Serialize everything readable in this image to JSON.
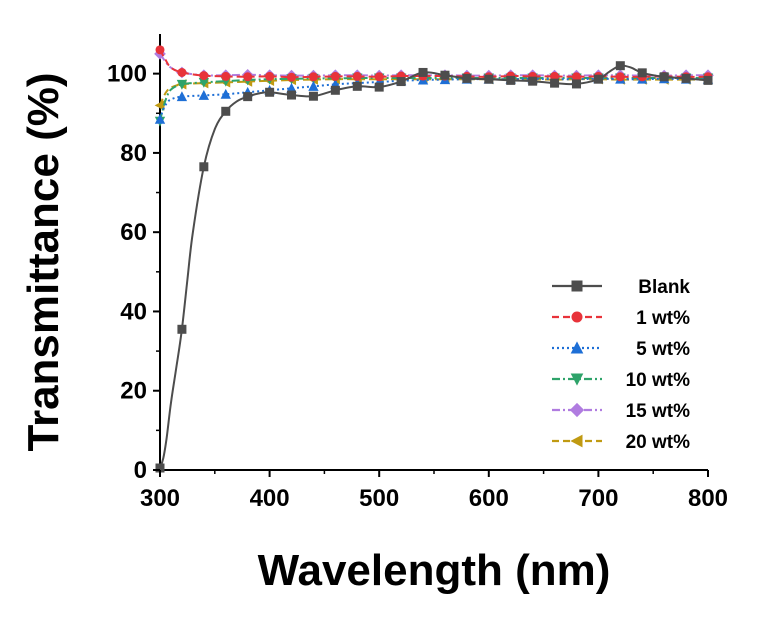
{
  "chart_data": {
    "type": "line",
    "xlabel": "Wavelength (nm)",
    "ylabel": "Transmittance (%)",
    "xlim": [
      300,
      800
    ],
    "ylim": [
      0,
      110
    ],
    "x_ticks": [
      300,
      400,
      500,
      600,
      700,
      800
    ],
    "y_ticks": [
      0,
      20,
      40,
      60,
      80,
      100
    ],
    "legend_position": "right",
    "grid": false,
    "series": [
      {
        "name": "Blank",
        "color": "#4d4d4d",
        "marker": "square",
        "dash": "solid",
        "x": [
          300,
          303,
          306,
          310,
          315,
          320,
          325,
          330,
          340,
          350,
          360,
          370,
          380,
          390,
          400,
          420,
          440,
          460,
          480,
          500,
          520,
          540,
          560,
          580,
          600,
          620,
          640,
          660,
          680,
          700,
          710,
          720,
          730,
          740,
          760,
          780,
          800
        ],
        "y": [
          0.5,
          3,
          8,
          17,
          26,
          35.5,
          48,
          60,
          76.5,
          86,
          90.5,
          93,
          94.2,
          95,
          95.3,
          94.6,
          94.3,
          95.8,
          96.8,
          96.6,
          98,
          100.3,
          99.6,
          98.8,
          98.6,
          98.3,
          98.1,
          97.6,
          97.4,
          98.6,
          100.5,
          102,
          101.5,
          100.2,
          99.2,
          98.8,
          98.3
        ],
        "markers_x": [
          300,
          320,
          340,
          360,
          380,
          400,
          420,
          440,
          460,
          480,
          500,
          520,
          540,
          560,
          580,
          600,
          620,
          640,
          660,
          680,
          700,
          720,
          740,
          760,
          780,
          800
        ]
      },
      {
        "name": "1 wt%",
        "color": "#e8333a",
        "marker": "circle",
        "dash": "dash",
        "x": [
          300,
          305,
          310,
          320,
          340,
          360,
          380,
          400,
          420,
          440,
          460,
          480,
          500,
          520,
          540,
          560,
          580,
          600,
          620,
          640,
          660,
          680,
          700,
          720,
          740,
          760,
          780,
          800
        ],
        "y": [
          106,
          103.5,
          101.5,
          100.3,
          99.5,
          99.3,
          99.2,
          99.3,
          99.1,
          99.2,
          99.3,
          99.3,
          99.2,
          99.4,
          99.4,
          99.4,
          99.3,
          99.2,
          99.4,
          99.3,
          99.3,
          99.2,
          99.3,
          99.2,
          99.2,
          99.3,
          99.2,
          99.2
        ]
      },
      {
        "name": "5 wt%",
        "color": "#1e6fd6",
        "marker": "triangle-up",
        "dash": "dot",
        "x": [
          300,
          303,
          306,
          310,
          320,
          340,
          360,
          380,
          400,
          420,
          440,
          460,
          480,
          500,
          520,
          540,
          560,
          580,
          600,
          620,
          640,
          660,
          680,
          700,
          720,
          740,
          760,
          780,
          800
        ],
        "y": [
          88.5,
          91,
          92.5,
          93.5,
          94.2,
          94.5,
          94.8,
          95.3,
          95.8,
          96.3,
          96.8,
          97.3,
          97.6,
          97.9,
          98.2,
          98.4,
          98.5,
          98.6,
          98.6,
          98.6,
          98.7,
          98.6,
          98.6,
          98.7,
          98.6,
          98.6,
          98.7,
          98.6,
          98.6
        ]
      },
      {
        "name": "10 wt%",
        "color": "#2ea36a",
        "marker": "triangle-down",
        "dash": "dashdot",
        "x": [
          300,
          303,
          306,
          310,
          320,
          340,
          360,
          380,
          400,
          420,
          440,
          460,
          480,
          500,
          520,
          540,
          560,
          580,
          600,
          620,
          640,
          660,
          680,
          700,
          720,
          740,
          760,
          780,
          800
        ],
        "y": [
          88,
          91.5,
          94,
          96,
          97.3,
          97.8,
          98.1,
          98.4,
          98.6,
          98.7,
          98.8,
          98.8,
          98.9,
          98.9,
          98.9,
          98.9,
          98.9,
          98.9,
          98.9,
          98.9,
          98.9,
          98.9,
          98.9,
          98.9,
          98.9,
          98.9,
          98.9,
          98.9,
          98.9
        ]
      },
      {
        "name": "15 wt%",
        "color": "#b07ce0",
        "marker": "diamond",
        "dash": "dashdot",
        "x": [
          300,
          305,
          310,
          320,
          340,
          360,
          380,
          400,
          420,
          440,
          460,
          480,
          500,
          520,
          540,
          560,
          580,
          600,
          620,
          640,
          660,
          680,
          700,
          720,
          740,
          760,
          780,
          800
        ],
        "y": [
          105,
          103,
          101.5,
          100.3,
          99.6,
          99.6,
          99.7,
          99.6,
          99.5,
          99.5,
          99.6,
          99.6,
          99.5,
          99.6,
          99.6,
          99.6,
          99.5,
          99.5,
          99.6,
          99.6,
          99.5,
          99.5,
          99.6,
          99.6,
          99.5,
          99.5,
          99.6,
          99.6
        ]
      },
      {
        "name": "20 wt%",
        "color": "#c09a12",
        "marker": "triangle-left",
        "dash": "dash",
        "x": [
          300,
          303,
          306,
          310,
          320,
          340,
          360,
          380,
          400,
          420,
          440,
          460,
          480,
          500,
          520,
          540,
          560,
          580,
          600,
          620,
          640,
          660,
          680,
          700,
          720,
          740,
          760,
          780,
          800
        ],
        "y": [
          92,
          94,
          95.5,
          96.5,
          97.3,
          97.6,
          97.8,
          98,
          98.2,
          98.4,
          98.5,
          98.6,
          98.6,
          98.6,
          98.6,
          98.6,
          98.6,
          98.6,
          98.6,
          98.6,
          98.6,
          98.5,
          98.6,
          98.6,
          98.5,
          98.5,
          98.5,
          98.5,
          98.5
        ]
      }
    ]
  }
}
